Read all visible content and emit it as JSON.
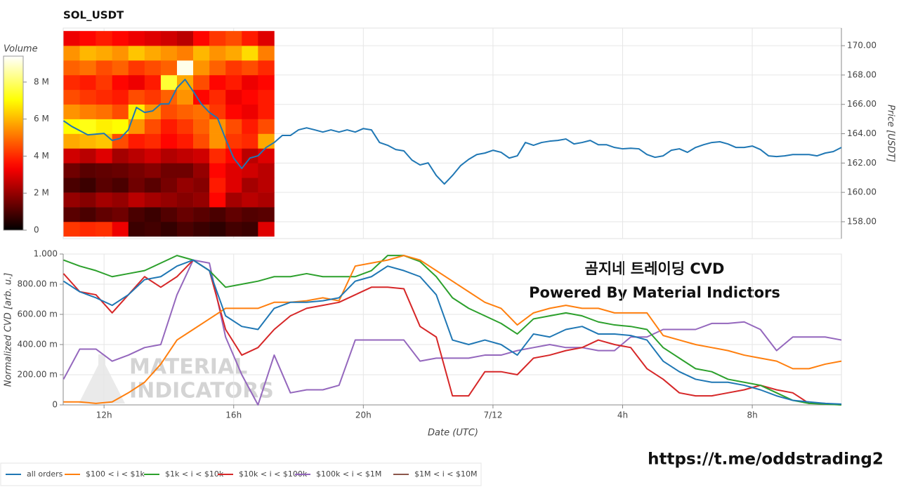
{
  "chart_data": [
    {
      "type": "heatmap",
      "title": "SOL_USDT",
      "ylabel": "Price [USDT]",
      "ylim": [
        156.85,
        171.2
      ],
      "yticks": [
        {
          "value": 158,
          "label": "158.00"
        },
        {
          "value": 160,
          "label": "160.00"
        },
        {
          "value": 162,
          "label": "162.00"
        },
        {
          "value": 164,
          "label": "164.00"
        },
        {
          "value": 166,
          "label": "166.00"
        },
        {
          "value": 168,
          "label": "168.00"
        },
        {
          "value": 170,
          "label": "170.00"
        }
      ],
      "grid": true,
      "line": {
        "color": "#1f77b4",
        "x": [
          10.75,
          11,
          11.25,
          11.5,
          11.75,
          12,
          12.25,
          12.5,
          12.75,
          13,
          13.25,
          13.5,
          13.75,
          14,
          14.25,
          14.5,
          14.75,
          15,
          15.25,
          15.5,
          15.75,
          16,
          16.25,
          16.5,
          16.75,
          17,
          17.25,
          17.5,
          17.75,
          18,
          18.25,
          18.5,
          18.75,
          19,
          19.25,
          19.5,
          19.75,
          20,
          20.25,
          20.5,
          20.75,
          21,
          21.25,
          21.5,
          21.75,
          22,
          22.25,
          22.5,
          22.75,
          23,
          23.25,
          23.5,
          23.75,
          24,
          24.25,
          24.5,
          24.75,
          25,
          25.25,
          25.5,
          25.75,
          26,
          26.25,
          26.5,
          26.75,
          27,
          27.25,
          27.5,
          27.75,
          28,
          28.25,
          28.5,
          28.75,
          29,
          29.25,
          29.5,
          29.75,
          30,
          30.25,
          30.5,
          30.75,
          31,
          31.25,
          31.5,
          31.75,
          32,
          32.25,
          32.5,
          32.75,
          33,
          33.25,
          33.5,
          33.75,
          34,
          34.25,
          34.5,
          34.75
        ],
        "values": [
          164.88,
          164.5,
          164.21,
          163.92,
          163.97,
          164.02,
          163.54,
          163.68,
          164.26,
          165.79,
          165.45,
          165.55,
          166.03,
          166.03,
          167.13,
          167.7,
          166.89,
          166.03,
          165.45,
          165.07,
          163.64,
          162.34,
          161.63,
          162.34,
          162.49,
          163.06,
          163.4,
          163.88,
          163.88,
          164.26,
          164.4,
          164.26,
          164.11,
          164.26,
          164.11,
          164.26,
          164.11,
          164.35,
          164.26,
          163.4,
          163.21,
          162.92,
          162.83,
          162.2,
          161.87,
          162.01,
          161.15,
          160.57,
          161.15,
          161.82,
          162.25,
          162.58,
          162.68,
          162.87,
          162.73,
          162.34,
          162.49,
          163.4,
          163.21,
          163.4,
          163.49,
          163.54,
          163.64,
          163.3,
          163.4,
          163.54,
          163.25,
          163.25,
          163.06,
          162.97,
          163.01,
          162.97,
          162.58,
          162.39,
          162.49,
          162.87,
          162.97,
          162.73,
          163.06,
          163.25,
          163.4,
          163.45,
          163.3,
          163.06,
          163.06,
          163.16,
          162.92,
          162.49,
          162.44,
          162.49,
          162.58,
          162.58,
          162.58,
          162.49,
          162.68,
          162.78,
          163.06
        ]
      },
      "heatmap": {
        "x_edges": [
          10.75,
          11.25,
          11.75,
          12.25,
          12.75,
          13.25,
          13.75,
          14.25,
          14.75,
          15.25,
          15.75,
          16.25,
          16.75,
          17.25
        ],
        "y_edges": [
          157,
          158,
          159,
          160,
          161,
          162,
          163,
          164,
          165,
          166,
          167,
          168,
          169,
          170,
          171
        ],
        "values": [
          [
            4.2,
            4.0,
            4.1,
            3.2,
            0.8,
            0.9,
            0.7,
            1.0,
            0.8,
            0.6,
            0.9,
            0.8,
            3.0
          ],
          [
            1.2,
            1.0,
            1.3,
            1.5,
            1.0,
            0.8,
            1.1,
            1.4,
            1.2,
            1.0,
            1.3,
            1.1,
            1.2
          ],
          [
            2.0,
            1.8,
            2.2,
            2.0,
            2.5,
            2.2,
            2.0,
            1.8,
            2.0,
            3.5,
            2.2,
            2.5,
            2.3
          ],
          [
            1.0,
            0.8,
            1.2,
            1.0,
            1.5,
            1.2,
            1.6,
            2.0,
            1.8,
            3.8,
            3.0,
            2.2,
            2.5
          ],
          [
            1.5,
            1.2,
            1.3,
            1.4,
            1.6,
            1.8,
            1.5,
            1.5,
            2.0,
            3.5,
            3.0,
            2.8,
            2.5
          ],
          [
            2.8,
            2.5,
            3.0,
            2.2,
            2.5,
            2.8,
            2.4,
            2.6,
            2.8,
            4.0,
            3.5,
            2.5,
            3.0
          ],
          [
            5.8,
            6.0,
            6.2,
            4.5,
            3.8,
            4.0,
            3.5,
            3.8,
            4.5,
            5.5,
            4.2,
            4.0,
            5.8
          ],
          [
            7.0,
            7.2,
            6.8,
            7.0,
            5.5,
            4.5,
            3.8,
            4.2,
            4.8,
            5.5,
            4.5,
            3.8,
            4.5
          ],
          [
            5.5,
            5.2,
            5.0,
            4.5,
            6.8,
            5.5,
            4.5,
            4.8,
            5.0,
            4.2,
            3.5,
            3.2,
            3.8
          ],
          [
            4.5,
            4.2,
            4.0,
            3.8,
            4.5,
            4.2,
            4.8,
            5.5,
            3.5,
            4.0,
            3.2,
            3.5,
            3.8
          ],
          [
            4.0,
            3.8,
            4.2,
            3.5,
            3.2,
            3.8,
            7.5,
            5.8,
            4.5,
            3.5,
            3.8,
            3.2,
            3.5
          ],
          [
            4.8,
            5.0,
            4.5,
            4.8,
            4.2,
            4.5,
            4.8,
            9.2,
            5.5,
            4.8,
            4.2,
            4.5,
            4.0
          ],
          [
            5.5,
            6.0,
            5.8,
            5.5,
            6.2,
            5.8,
            5.5,
            5.2,
            6.0,
            5.5,
            5.8,
            6.5,
            5.2
          ],
          [
            3.2,
            3.5,
            3.8,
            3.5,
            3.2,
            3.0,
            2.8,
            2.5,
            3.5,
            4.2,
            4.5,
            3.8,
            3.0
          ]
        ]
      },
      "colorbar": {
        "label": "Volume",
        "colormap": "hot",
        "lim": [
          0,
          9.4
        ],
        "ticks": [
          0,
          {
            "value": 2,
            "label": "2 M"
          },
          {
            "value": 4,
            "label": "4 M"
          },
          {
            "value": 6,
            "label": "6 M"
          },
          {
            "value": 8,
            "label": "8 M"
          }
        ]
      }
    },
    {
      "type": "line",
      "xlabel": "Date (UTC)",
      "ylabel": "Normalized CVD [arb. u.]",
      "xlim": [
        10.74,
        34.75
      ],
      "xticks": [
        {
          "value": 12,
          "label": "12h"
        },
        {
          "value": 16,
          "label": "16h"
        },
        {
          "value": 20,
          "label": "20h"
        },
        {
          "value": 24,
          "label": "7/12"
        },
        {
          "value": 28,
          "label": "4h"
        },
        {
          "value": 32,
          "label": "8h"
        }
      ],
      "ylim": [
        0,
        1
      ],
      "yticks": [
        0,
        {
          "value": 0.2,
          "label": "200.00 m"
        },
        {
          "value": 0.4,
          "label": "400.00 m"
        },
        {
          "value": 0.6,
          "label": "600.00 m"
        },
        {
          "value": 0.8,
          "label": "800.00 m"
        },
        {
          "value": 1,
          "label": "1.000"
        }
      ],
      "grid": true,
      "annotations": [
        "곰지네 트레이딩 CVD",
        "Powered By Material Indictors",
        "https://t.me/oddstrading2"
      ],
      "watermark": [
        "MATERIAL",
        "INDICATORS"
      ],
      "x": [
        10.75,
        11.25,
        11.75,
        12.25,
        12.75,
        13.25,
        13.75,
        14.25,
        14.75,
        15.25,
        15.75,
        16.25,
        16.75,
        17.25,
        17.75,
        18.25,
        18.75,
        19.25,
        19.75,
        20.25,
        20.75,
        21.25,
        21.75,
        22.25,
        22.75,
        23.25,
        23.75,
        24.25,
        24.75,
        25.25,
        25.75,
        26.25,
        26.75,
        27.25,
        27.75,
        28.25,
        28.75,
        29.25,
        29.75,
        30.25,
        30.75,
        31.25,
        31.75,
        32.25,
        32.75,
        33.25,
        33.75,
        34.25,
        34.75
      ],
      "series": [
        {
          "name": "all orders",
          "color": "#1f77b4",
          "values": [
            0.82,
            0.75,
            0.71,
            0.66,
            0.73,
            0.83,
            0.85,
            0.92,
            0.96,
            0.89,
            0.59,
            0.52,
            0.5,
            0.64,
            0.68,
            0.68,
            0.69,
            0.71,
            0.82,
            0.85,
            0.92,
            0.89,
            0.85,
            0.73,
            0.43,
            0.4,
            0.43,
            0.4,
            0.33,
            0.47,
            0.45,
            0.5,
            0.52,
            0.47,
            0.47,
            0.46,
            0.43,
            0.29,
            0.22,
            0.17,
            0.15,
            0.15,
            0.13,
            0.1,
            0.06,
            0.03,
            0.02,
            0.01,
            0.005
          ]
        },
        {
          "name": "$100 < i < $1k",
          "color": "#ff7f0e",
          "values": [
            0.02,
            0.02,
            0.01,
            0.02,
            0.08,
            0.15,
            0.27,
            0.43,
            0.5,
            0.57,
            0.64,
            0.64,
            0.64,
            0.68,
            0.68,
            0.69,
            0.71,
            0.69,
            0.92,
            0.94,
            0.96,
            0.99,
            0.96,
            0.89,
            0.82,
            0.75,
            0.68,
            0.64,
            0.53,
            0.61,
            0.64,
            0.66,
            0.64,
            0.64,
            0.61,
            0.61,
            0.61,
            0.46,
            0.43,
            0.4,
            0.38,
            0.36,
            0.33,
            0.31,
            0.29,
            0.24,
            0.24,
            0.27,
            0.29
          ]
        },
        {
          "name": "$1k < i < $10k",
          "color": "#2ca02c",
          "values": [
            0.96,
            0.92,
            0.89,
            0.85,
            0.87,
            0.89,
            0.94,
            0.99,
            0.96,
            0.89,
            0.78,
            0.8,
            0.82,
            0.85,
            0.85,
            0.87,
            0.85,
            0.85,
            0.85,
            0.89,
            0.99,
            0.99,
            0.95,
            0.85,
            0.71,
            0.64,
            0.59,
            0.54,
            0.47,
            0.57,
            0.59,
            0.61,
            0.59,
            0.55,
            0.53,
            0.52,
            0.5,
            0.38,
            0.31,
            0.24,
            0.22,
            0.17,
            0.15,
            0.13,
            0.08,
            0.03,
            0.01,
            0.005,
            0
          ]
        },
        {
          "name": "$10k < i < $100k",
          "color": "#d62728",
          "values": [
            0.87,
            0.75,
            0.73,
            0.61,
            0.73,
            0.85,
            0.78,
            0.85,
            0.96,
            0.89,
            0.5,
            0.33,
            0.38,
            0.5,
            0.59,
            0.64,
            0.66,
            0.68,
            0.73,
            0.78,
            0.78,
            0.77,
            0.52,
            0.45,
            0.06,
            0.06,
            0.22,
            0.22,
            0.2,
            0.31,
            0.33,
            0.36,
            0.38,
            0.43,
            0.4,
            0.38,
            0.24,
            0.17,
            0.08,
            0.06,
            0.06,
            0.08,
            0.1,
            0.13,
            0.1,
            0.08,
            0.01,
            0.01,
            0
          ]
        },
        {
          "name": "$100k < i < $1M",
          "color": "#9467bd",
          "values": [
            0.17,
            0.37,
            0.37,
            0.29,
            0.33,
            0.38,
            0.4,
            0.73,
            0.96,
            0.94,
            0.45,
            0.2,
            0,
            0.33,
            0.08,
            0.1,
            0.1,
            0.13,
            0.43,
            0.43,
            0.43,
            0.43,
            0.29,
            0.31,
            0.31,
            0.31,
            0.33,
            0.33,
            0.36,
            0.38,
            0.4,
            0.38,
            0.38,
            0.36,
            0.36,
            0.45,
            0.45,
            0.5,
            0.5,
            0.5,
            0.54,
            0.54,
            0.55,
            0.5,
            0.36,
            0.45,
            0.45,
            0.45,
            0.43
          ]
        },
        {
          "name": "$1M < i < $10M",
          "color": "#8c564b",
          "values": [
            null,
            null,
            null,
            null,
            null,
            null,
            null,
            null,
            null,
            null,
            null,
            null,
            null,
            null,
            null,
            null,
            null,
            null,
            null,
            null,
            null,
            null,
            null,
            null,
            null,
            null,
            null,
            null,
            null,
            null,
            null,
            null,
            null,
            null,
            null,
            null,
            null,
            null,
            null,
            null,
            null,
            null,
            null,
            null,
            null,
            null,
            null,
            null,
            null
          ]
        }
      ]
    }
  ]
}
